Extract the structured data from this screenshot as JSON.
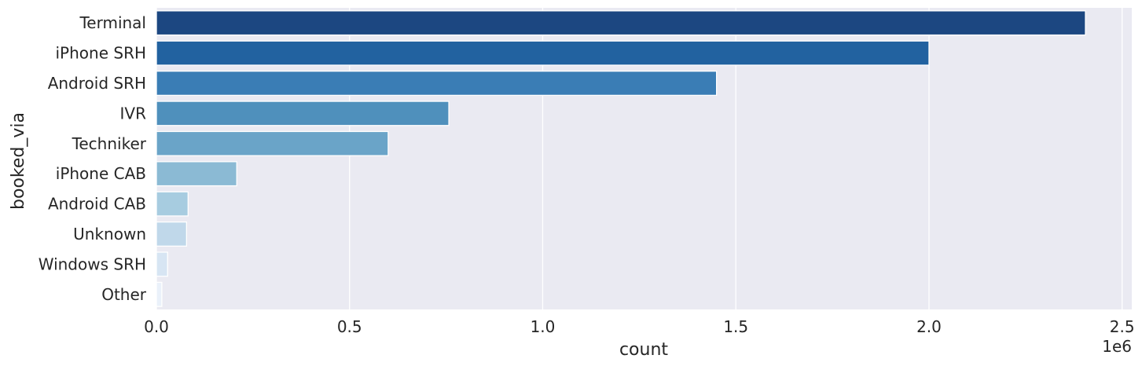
{
  "chart_data": {
    "type": "bar",
    "orientation": "horizontal",
    "categories": [
      "Terminal",
      "iPhone SRH",
      "Android SRH",
      "IVR",
      "Techniker",
      "iPhone CAB",
      "Android CAB",
      "Unknown",
      "Windows SRH",
      "Other"
    ],
    "values": [
      2405000,
      2000000,
      1450000,
      757000,
      600000,
      208000,
      82000,
      78000,
      29000,
      14000
    ],
    "colors": [
      "#1c4781",
      "#2262a0",
      "#3a7db5",
      "#4f90bc",
      "#6aa4c8",
      "#8bbad4",
      "#a7cce0",
      "#c0d8ea",
      "#d7e5f3",
      "#eaf1fa"
    ],
    "xlabel": "count",
    "ylabel": "booked_via",
    "x_offset_label": "1e6",
    "xlim": [
      0,
      2525000
    ],
    "x_ticks": [
      0,
      500000,
      1000000,
      1500000,
      2000000,
      2500000
    ],
    "x_tick_labels": [
      "0.0",
      "0.5",
      "1.0",
      "1.5",
      "2.0",
      "2.5"
    ],
    "grid": true,
    "background": "#eaeaf2"
  }
}
